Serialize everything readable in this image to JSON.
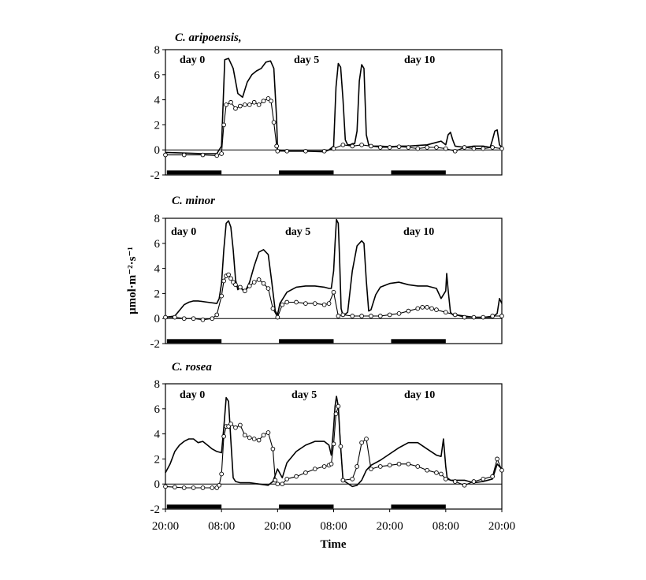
{
  "chart_data": [
    {
      "type": "line",
      "title": "C. aripoensis,",
      "day_labels": [
        "day 0",
        "day 5",
        "day 10"
      ],
      "ylim": [
        -2,
        8
      ],
      "yticks": [
        "-2",
        "0",
        "2",
        "4",
        "6",
        "8"
      ],
      "xlim": [
        0,
        72
      ],
      "dark_periods": [
        [
          0,
          12
        ],
        [
          24,
          36
        ],
        [
          48,
          60
        ]
      ],
      "series": [
        {
          "style": "solid",
          "x": [
            0,
            4,
            8,
            11,
            12,
            12.7,
            13.5,
            14.5,
            15.5,
            16.5,
            17.5,
            18.5,
            19.5,
            20.5,
            21.5,
            22.5,
            23.2,
            23.8,
            24,
            26,
            30,
            34,
            35,
            36,
            36.5,
            37,
            37.5,
            38,
            38.5,
            39,
            39.5,
            40,
            40.5,
            41,
            41.5,
            42,
            42.5,
            43,
            43.5,
            44,
            46,
            48,
            50,
            52,
            54,
            56,
            58,
            59,
            60,
            60.5,
            61,
            61.5,
            62,
            64,
            66,
            68,
            69.5,
            70,
            70.5,
            71,
            71.5,
            72
          ],
          "y": [
            -0.2,
            -0.25,
            -0.3,
            -0.3,
            0.3,
            7.2,
            7.3,
            6.5,
            4.5,
            4.2,
            5.4,
            6,
            6.3,
            6.5,
            7,
            7.1,
            6.5,
            2.5,
            0,
            -0.1,
            -0.1,
            -0.15,
            0,
            0.3,
            5,
            6.9,
            6.6,
            4,
            0.8,
            0.4,
            0.4,
            0.5,
            0.5,
            1.5,
            5.5,
            6.8,
            6.5,
            1.2,
            0.4,
            0.3,
            0.3,
            0.25,
            0.3,
            0.3,
            0.35,
            0.4,
            0.6,
            0.7,
            0.4,
            1.2,
            1.4,
            0.8,
            0.3,
            0.2,
            0.3,
            0.3,
            0.2,
            0.8,
            1.5,
            1.6,
            0.4,
            0.2
          ]
        },
        {
          "style": "circles",
          "x": [
            0,
            4,
            8,
            11,
            12,
            12.5,
            13,
            14,
            15,
            16,
            17,
            18,
            19,
            20,
            21,
            22,
            22.6,
            23.2,
            23.8,
            24,
            26,
            30,
            34,
            36,
            38,
            40,
            42,
            44,
            46,
            48,
            50,
            52,
            54,
            56,
            58,
            60,
            62,
            64,
            66,
            68,
            70,
            72
          ],
          "y": [
            -0.4,
            -0.4,
            -0.4,
            -0.45,
            -0.3,
            2,
            3.6,
            3.8,
            3.3,
            3.5,
            3.6,
            3.6,
            3.8,
            3.6,
            3.9,
            4.1,
            3.9,
            2.2,
            0.3,
            -0.1,
            -0.1,
            -0.1,
            -0.1,
            0.1,
            0.4,
            0.3,
            0.4,
            0.3,
            0.2,
            0.2,
            0.25,
            0.2,
            0.1,
            0.2,
            0.2,
            0.1,
            -0.1,
            0.2,
            0.1,
            0.1,
            0.2,
            0.1
          ]
        }
      ]
    },
    {
      "type": "line",
      "title": "C. minor",
      "day_labels": [
        "day 0",
        "day 5",
        "day 10"
      ],
      "ylim": [
        -2,
        8
      ],
      "yticks": [
        "-2",
        "0",
        "2",
        "4",
        "6",
        "8"
      ],
      "ylabel": "μmol·m⁻²·s⁻¹",
      "xlim": [
        0,
        72
      ],
      "dark_periods": [
        [
          0,
          12
        ],
        [
          24,
          36
        ],
        [
          48,
          60
        ]
      ],
      "series": [
        {
          "style": "solid",
          "x": [
            0,
            2,
            4,
            5,
            6,
            7,
            9,
            11,
            11.5,
            12,
            12.5,
            13,
            13.5,
            14,
            14.5,
            15,
            15.5,
            16,
            17,
            18,
            19,
            20,
            21,
            22,
            22.7,
            23.5,
            24,
            24.5,
            26,
            28,
            30,
            32,
            34,
            35,
            35.5,
            36,
            36.3,
            36.6,
            37,
            37.3,
            37.6,
            38,
            39,
            40,
            41,
            42,
            42.5,
            43,
            43.5,
            44,
            45,
            46,
            48,
            50,
            52,
            54,
            56,
            58,
            59,
            60,
            60.2,
            60.5,
            61,
            61.5,
            62,
            64,
            66,
            68,
            70,
            71,
            71.5,
            72
          ],
          "y": [
            0.1,
            0.2,
            1.1,
            1.3,
            1.4,
            1.4,
            1.3,
            1.2,
            1.6,
            2.8,
            5.5,
            7.6,
            7.8,
            7.3,
            5.5,
            3.1,
            2.3,
            2.5,
            2.1,
            2.9,
            4.2,
            5.3,
            5.5,
            5.1,
            3.1,
            0.6,
            0.3,
            1.2,
            2.1,
            2.5,
            2.6,
            2.6,
            2.5,
            2.4,
            2.4,
            3.8,
            6,
            7.9,
            7.6,
            4.5,
            0.8,
            0.2,
            0.5,
            3.8,
            5.8,
            6.2,
            6,
            3,
            0.6,
            0.7,
            1.9,
            2.5,
            2.8,
            2.9,
            2.7,
            2.6,
            2.6,
            2.4,
            1.6,
            2.2,
            3.6,
            2.3,
            0.5,
            0.3,
            0.3,
            0.2,
            0.1,
            0.1,
            0.1,
            0.4,
            1.6,
            1.2
          ]
        },
        {
          "style": "circles",
          "x": [
            0,
            2,
            4,
            6,
            8,
            10,
            11,
            12,
            12.5,
            13,
            13.5,
            14,
            14.5,
            15,
            16,
            17,
            18,
            19,
            20,
            21,
            22,
            23,
            24,
            25,
            26,
            28,
            30,
            32,
            34,
            35,
            36,
            37,
            38,
            40,
            42,
            44,
            46,
            48,
            50,
            52,
            54,
            55,
            56,
            57,
            58,
            60,
            62,
            64,
            66,
            68,
            70,
            72
          ],
          "y": [
            0.1,
            0.1,
            0,
            0,
            -0.1,
            0,
            0.3,
            1.8,
            3,
            3.4,
            3.5,
            3.2,
            2.9,
            2.7,
            2.5,
            2.2,
            2.6,
            2.9,
            3.1,
            2.8,
            2.4,
            0.8,
            0.1,
            1.1,
            1.3,
            1.3,
            1.2,
            1.2,
            1.1,
            1.2,
            2.1,
            0.2,
            0.3,
            0.2,
            0.2,
            0.2,
            0.2,
            0.3,
            0.4,
            0.6,
            0.8,
            0.9,
            0.9,
            0.8,
            0.7,
            0.5,
            0.3,
            0.1,
            0.1,
            0.1,
            0.2,
            0.2
          ]
        }
      ]
    },
    {
      "type": "line",
      "title": "C. rosea",
      "day_labels": [
        "day 0",
        "day 5",
        "day 10"
      ],
      "ylim": [
        -2,
        8
      ],
      "yticks": [
        "-2",
        "0",
        "2",
        "4",
        "6",
        "8"
      ],
      "xlabel": "Time",
      "xticks": [
        "20:00",
        "08:00",
        "20:00",
        "08:00",
        "20:00",
        "08:00",
        "20:00"
      ],
      "xlim": [
        0,
        72
      ],
      "dark_periods": [
        [
          0,
          12
        ],
        [
          24,
          36
        ],
        [
          48,
          60
        ]
      ],
      "series": [
        {
          "style": "solid",
          "x": [
            0,
            1,
            2,
            3,
            4,
            5,
            6,
            7,
            8,
            9,
            10,
            11,
            12,
            12.5,
            13,
            13.5,
            14,
            14.5,
            15,
            16,
            18,
            20,
            22,
            23,
            24,
            25,
            26,
            28,
            30,
            32,
            34,
            35,
            35.5,
            36,
            36.3,
            36.6,
            37,
            37.4,
            38,
            40,
            41,
            42,
            43,
            44,
            46,
            48,
            50,
            52,
            54,
            56,
            58,
            59,
            59.5,
            60,
            60.3,
            61,
            62,
            64,
            66,
            68,
            70,
            71,
            72
          ],
          "y": [
            0.9,
            1.6,
            2.6,
            3.1,
            3.4,
            3.6,
            3.6,
            3.3,
            3.4,
            3.1,
            2.8,
            2.6,
            2.5,
            4.5,
            6.9,
            6.6,
            3.5,
            0.5,
            0.2,
            0.1,
            0.1,
            0,
            -0.1,
            0.2,
            1.2,
            0.5,
            1.7,
            2.6,
            3.1,
            3.4,
            3.4,
            3.1,
            2.3,
            4.5,
            6.2,
            7,
            6.2,
            3.5,
            0.3,
            -0.2,
            -0.1,
            0.3,
            1.1,
            1.5,
            1.9,
            2.4,
            2.9,
            3.3,
            3.3,
            2.8,
            2.3,
            2.2,
            3.6,
            1.4,
            0.5,
            0.3,
            0.3,
            0.3,
            0.1,
            0.2,
            0.4,
            1.6,
            1.2
          ]
        },
        {
          "style": "circles",
          "x": [
            0,
            2,
            4,
            6,
            8,
            10,
            11,
            11.5,
            12,
            12.5,
            13,
            13.5,
            14,
            15,
            16,
            17,
            18,
            19,
            20,
            21,
            22,
            23,
            23.5,
            24,
            25,
            26,
            28,
            30,
            32,
            34,
            35,
            35.5,
            36,
            36.5,
            37,
            37.5,
            38,
            40,
            41,
            42,
            43,
            44,
            46,
            48,
            50,
            52,
            54,
            56,
            58,
            59,
            60,
            62,
            64,
            66,
            68,
            70,
            71,
            72
          ],
          "y": [
            -0.2,
            -0.25,
            -0.3,
            -0.3,
            -0.3,
            -0.3,
            -0.3,
            -0.1,
            0.8,
            3.8,
            4.6,
            4.6,
            4.8,
            4.5,
            4.7,
            3.9,
            3.7,
            3.6,
            3.5,
            3.9,
            4.1,
            2.8,
            0.3,
            0,
            0,
            0.4,
            0.6,
            0.9,
            1.2,
            1.4,
            1.5,
            1.6,
            3.2,
            5.6,
            6.2,
            3,
            0.3,
            0.4,
            1.4,
            3.3,
            3.6,
            1.2,
            1.4,
            1.5,
            1.6,
            1.6,
            1.4,
            1.1,
            0.9,
            0.8,
            0.4,
            0.2,
            -0.1,
            0.2,
            0.4,
            0.6,
            2,
            1.1
          ]
        }
      ]
    }
  ]
}
